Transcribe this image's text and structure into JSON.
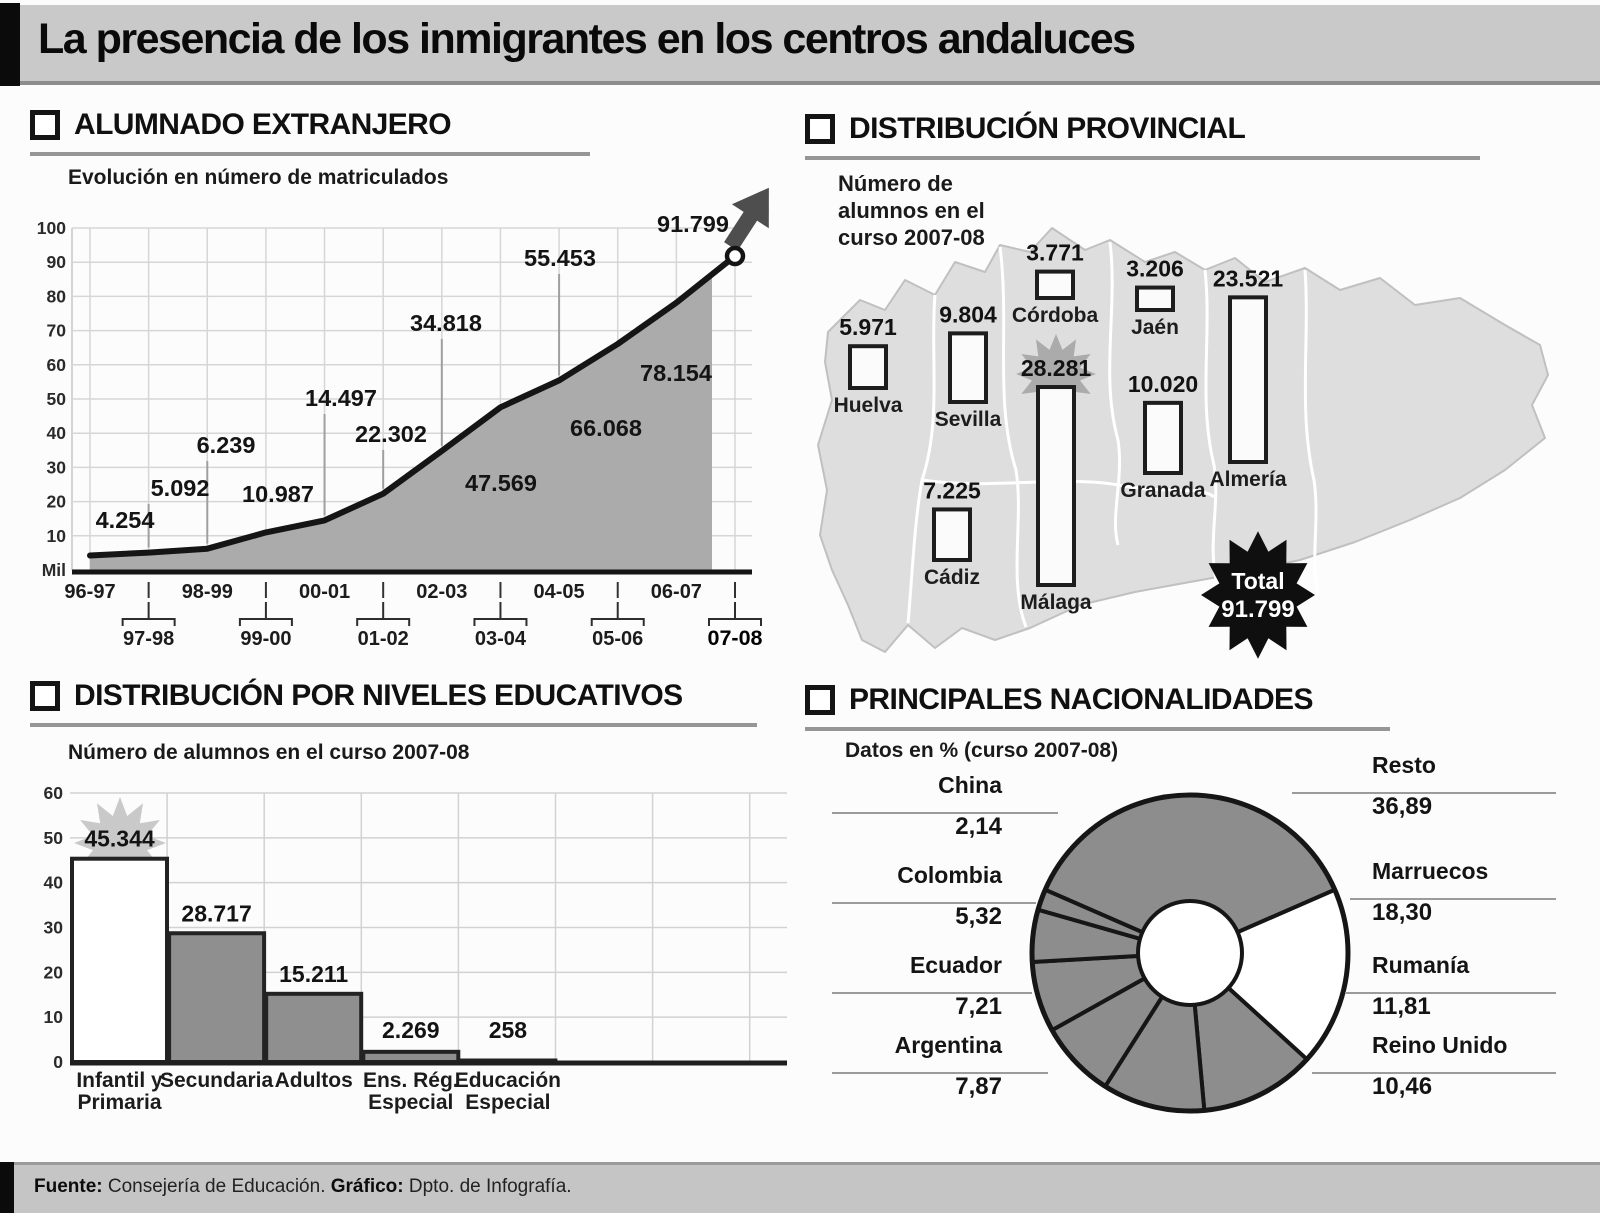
{
  "title": "La presencia de los inmigrantes en los centros andaluces",
  "sections": {
    "alumnado": {
      "title": "ALUMNADO EXTRANJERO",
      "subtitle": "Evolución en número de matriculados"
    },
    "provincial": {
      "title": "DISTRIBUCIÓN PROVINCIAL",
      "subtitle_lines": [
        "Número de",
        "alumnos en el",
        "curso 2007-08"
      ]
    },
    "niveles": {
      "title": "DISTRIBUCIÓN POR NIVELES EDUCATIVOS",
      "subtitle": "Número de alumnos en el curso 2007-08"
    },
    "nacionalidades": {
      "title": "PRINCIPALES NACIONALIDADES",
      "subtitle": "Datos en % (curso 2007-08)"
    }
  },
  "footer": {
    "source_label": "Fuente:",
    "source_text": " Consejería de Educación. ",
    "graphic_label": "Gráfico:",
    "graphic_text": " Dpto. de Infografía."
  },
  "chart_data": [
    {
      "id": "evolucion",
      "type": "area",
      "title": "Evolución en número de matriculados",
      "unit": "Mil",
      "x": [
        "96-97",
        "97-98",
        "98-99",
        "99-00",
        "00-01",
        "01-02",
        "02-03",
        "03-04",
        "04-05",
        "05-06",
        "06-07",
        "07-08"
      ],
      "values": [
        4254,
        5092,
        6239,
        10987,
        14497,
        22302,
        34818,
        47569,
        55453,
        66068,
        78154,
        91799
      ],
      "point_labels": [
        "4.254",
        "5.092",
        "6.239",
        "10.987",
        "14.497",
        "22.302",
        "34.818",
        "47.569",
        "55.453",
        "66.068",
        "78.154",
        "91.799"
      ],
      "ylim": [
        0,
        100000
      ],
      "yticks": [
        "Mil",
        "10",
        "20",
        "30",
        "40",
        "50",
        "60",
        "70",
        "80",
        "90",
        "100"
      ],
      "grid": true,
      "legend": "none",
      "highlight_last": "91.799"
    },
    {
      "id": "provincial",
      "type": "bar",
      "variant": "map-bars",
      "region": "Andalucía",
      "title": "Número de alumnos en el curso 2007-08",
      "provinces": [
        {
          "name": "Huelva",
          "value": 5971,
          "label": "5.971"
        },
        {
          "name": "Sevilla",
          "value": 9804,
          "label": "9.804"
        },
        {
          "name": "Cádiz",
          "value": 7225,
          "label": "7.225"
        },
        {
          "name": "Córdoba",
          "value": 3771,
          "label": "3.771"
        },
        {
          "name": "Málaga",
          "value": 28281,
          "label": "28.281"
        },
        {
          "name": "Jaén",
          "value": 3206,
          "label": "3.206"
        },
        {
          "name": "Granada",
          "value": 10020,
          "label": "10.020"
        },
        {
          "name": "Almería",
          "value": 23521,
          "label": "23.521"
        }
      ],
      "total": {
        "label": "Total",
        "value": 91799,
        "text": "91.799"
      }
    },
    {
      "id": "niveles",
      "type": "bar",
      "title": "Número de alumnos en el curso 2007-08",
      "categories": [
        "Infantil y\nPrimaria",
        "Secundaria",
        "Adultos",
        "Ens. Rég.\nEspecial",
        "Educación\nEspecial"
      ],
      "values": [
        45344,
        28717,
        15211,
        2269,
        258
      ],
      "bar_labels": [
        "45.344",
        "28.717",
        "15.211",
        "2.269",
        "258"
      ],
      "ylim": [
        0,
        60000
      ],
      "yticks": [
        "0",
        "10",
        "20",
        "30",
        "40",
        "50",
        "60"
      ],
      "grid": true
    },
    {
      "id": "nacionalidades",
      "type": "pie",
      "donut": true,
      "title": "Datos en % (curso 2007-08)",
      "slices": [
        {
          "name": "Resto",
          "pct": 36.89,
          "label": "36,89"
        },
        {
          "name": "Marruecos",
          "pct": 18.3,
          "label": "18,30"
        },
        {
          "name": "Rumanía",
          "pct": 11.81,
          "label": "11,81"
        },
        {
          "name": "Reino Unido",
          "pct": 10.46,
          "label": "10,46"
        },
        {
          "name": "Argentina",
          "pct": 7.87,
          "label": "7,87"
        },
        {
          "name": "Ecuador",
          "pct": 7.21,
          "label": "7,21"
        },
        {
          "name": "Colombia",
          "pct": 5.32,
          "label": "5,32"
        },
        {
          "name": "China",
          "pct": 2.14,
          "label": "2,14"
        }
      ],
      "colors": {
        "default": "#8d8d8d",
        "Marruecos": "#ffffff",
        "stroke": "#161616"
      }
    }
  ]
}
